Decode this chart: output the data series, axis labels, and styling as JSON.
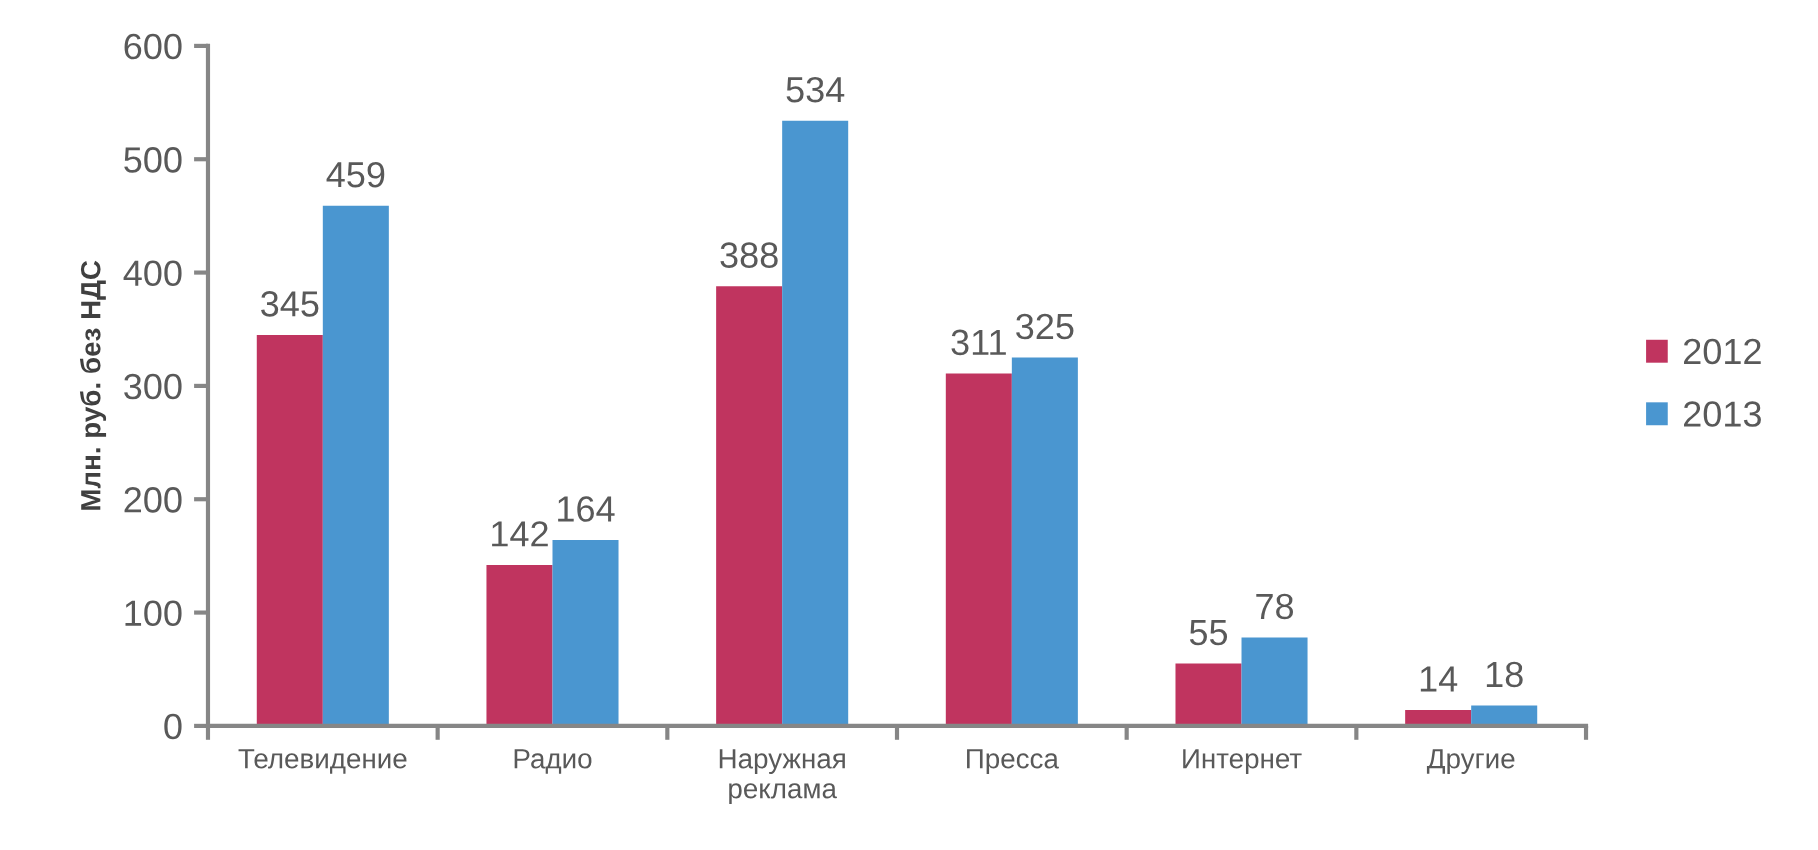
{
  "chart_data": {
    "type": "bar",
    "ylabel": "Млн. руб. без НДС",
    "categories": [
      "Телевидение",
      "Радио",
      "Наружная\nреклама",
      "Пресса",
      "Интернет",
      "Другие"
    ],
    "series": [
      {
        "name": "2012",
        "color": "#c0345f",
        "values": [
          345,
          142,
          388,
          311,
          55,
          14
        ]
      },
      {
        "name": "2013",
        "color": "#4a96d0",
        "values": [
          459,
          164,
          534,
          325,
          78,
          18
        ]
      }
    ],
    "ylim": [
      0,
      600
    ],
    "yticks": [
      0,
      100,
      200,
      300,
      400,
      500,
      600
    ],
    "data_labels": true,
    "legend": "right",
    "grid": false
  }
}
